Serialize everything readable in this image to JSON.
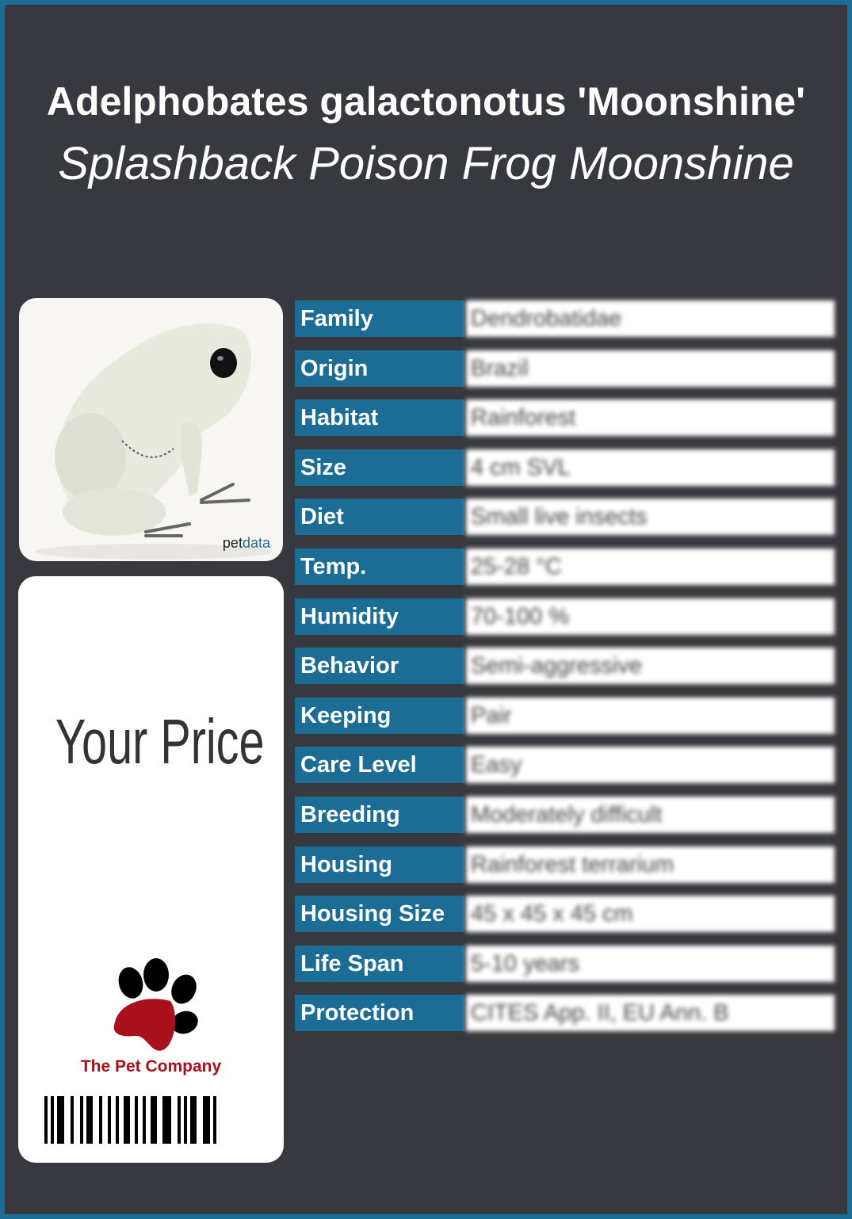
{
  "header": {
    "title": "Adelphobates galactonotus 'Moonshine'",
    "subtitle": "Splashback Poison Frog Moonshine"
  },
  "photo": {
    "watermark_a": "pet",
    "watermark_b": "data"
  },
  "price_card": {
    "price_label": "Your Price",
    "company": "The Pet Company"
  },
  "colors": {
    "accent": "#1b6d96",
    "background": "#38393e",
    "brand_red": "#a8111b"
  },
  "attributes": [
    {
      "label": "Family",
      "value": "Dendrobatidae"
    },
    {
      "label": "Origin",
      "value": "Brazil"
    },
    {
      "label": "Habitat",
      "value": "Rainforest"
    },
    {
      "label": "Size",
      "value": "4 cm SVL"
    },
    {
      "label": "Diet",
      "value": "Small live insects"
    },
    {
      "label": "Temp.",
      "value": "25-28 °C"
    },
    {
      "label": "Humidity",
      "value": "70-100 %"
    },
    {
      "label": "Behavior",
      "value": "Semi-aggressive"
    },
    {
      "label": "Keeping",
      "value": "Pair"
    },
    {
      "label": "Care Level",
      "value": "Easy"
    },
    {
      "label": "Breeding",
      "value": "Moderately difficult"
    },
    {
      "label": "Housing",
      "value": "Rainforest terrarium"
    },
    {
      "label": "Housing Size",
      "value": "45 x 45 x 45 cm"
    },
    {
      "label": "Life Span",
      "value": "5-10 years"
    },
    {
      "label": "Protection",
      "value": "CITES App. II, EU Ann. B"
    }
  ]
}
